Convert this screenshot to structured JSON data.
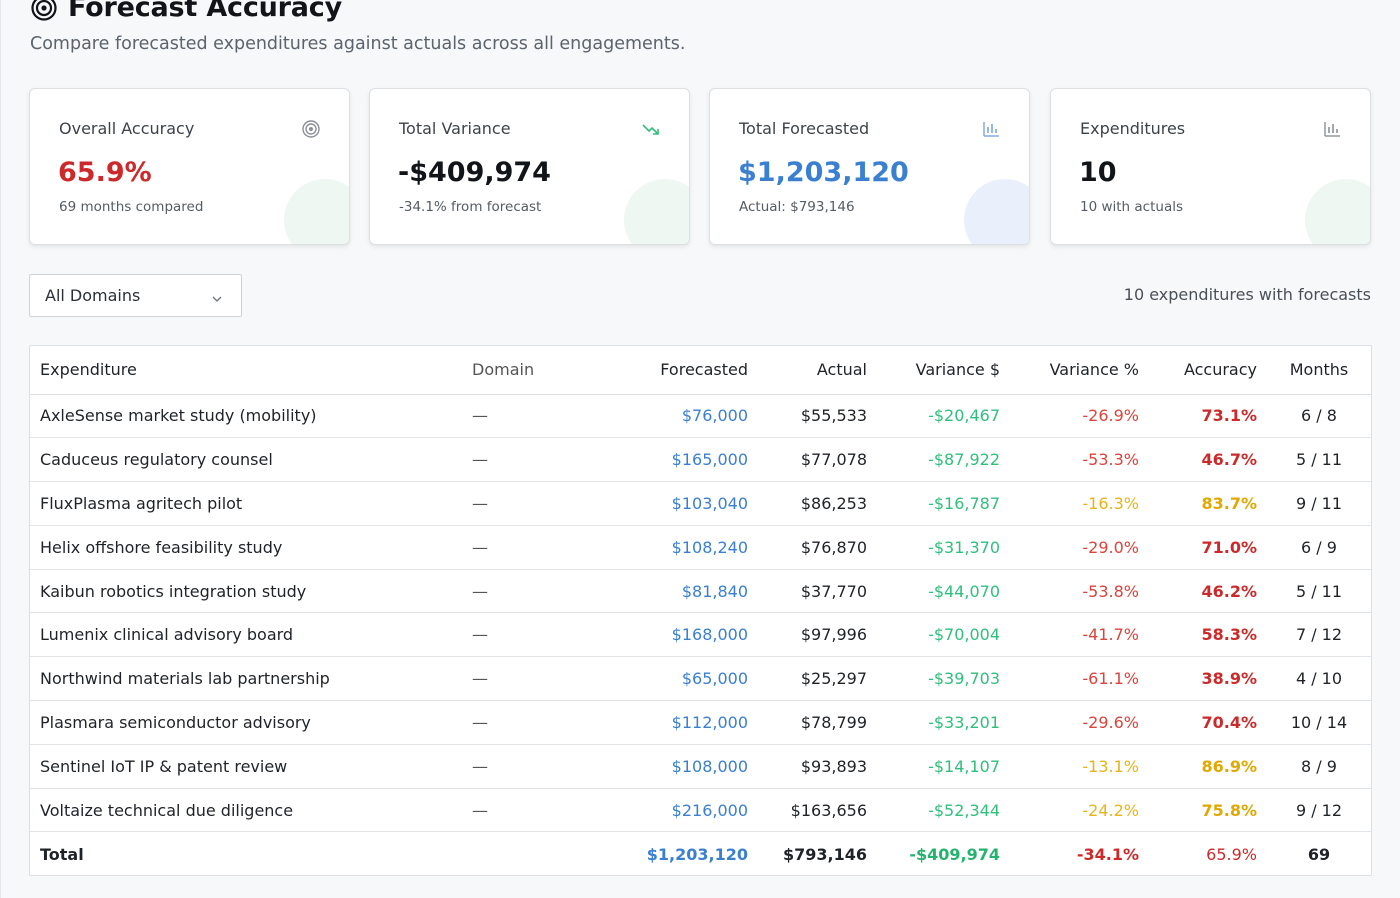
{
  "header": {
    "title": "Forecast Accuracy",
    "icon": "target-icon",
    "subtitle": "Compare forecasted expenditures against actuals across all engagements."
  },
  "cards": [
    {
      "label": "Overall Accuracy",
      "value": "65.9%",
      "sub": "69 months compared",
      "icon": "target-icon",
      "value_color": "#cc2a2a",
      "icon_color": "#8a9099"
    },
    {
      "label": "Total Variance",
      "value": "-$409,974",
      "sub": "-34.1% from forecast",
      "icon": "trending-down-icon",
      "value_color": "#111418",
      "icon_color": "#2fbf7c"
    },
    {
      "label": "Total Forecasted",
      "value": "$1,203,120",
      "sub": "Actual: $793,146",
      "icon": "bar-chart-icon",
      "value_color": "#3a7fd0",
      "icon_color": "#7aa6e6"
    },
    {
      "label": "Expenditures",
      "value": "10",
      "sub": "10 with actuals",
      "icon": "bar-chart-icon",
      "value_color": "#111418",
      "icon_color": "#8a9099"
    }
  ],
  "filter": {
    "selected": "All Domains"
  },
  "count_text": "10 expenditures with forecasts",
  "table": {
    "headers": {
      "expenditure": "Expenditure",
      "domain": "Domain",
      "forecasted": "Forecasted",
      "actual": "Actual",
      "variance": "Variance $",
      "variance_pct": "Variance %",
      "accuracy": "Accuracy",
      "months": "Months"
    },
    "rows": [
      {
        "expenditure": "AxleSense market study (mobility)",
        "domain": "—",
        "forecasted": "$76,000",
        "actual": "$55,533",
        "variance": "-$20,467",
        "variance_pct": "-26.9%",
        "accuracy": "73.1%",
        "months": "6 / 8",
        "level": "red"
      },
      {
        "expenditure": "Caduceus regulatory counsel",
        "domain": "—",
        "forecasted": "$165,000",
        "actual": "$77,078",
        "variance": "-$87,922",
        "variance_pct": "-53.3%",
        "accuracy": "46.7%",
        "months": "5 / 11",
        "level": "red"
      },
      {
        "expenditure": "FluxPlasma agritech pilot",
        "domain": "—",
        "forecasted": "$103,040",
        "actual": "$86,253",
        "variance": "-$16,787",
        "variance_pct": "-16.3%",
        "accuracy": "83.7%",
        "months": "9 / 11",
        "level": "amber"
      },
      {
        "expenditure": "Helix offshore feasibility study",
        "domain": "—",
        "forecasted": "$108,240",
        "actual": "$76,870",
        "variance": "-$31,370",
        "variance_pct": "-29.0%",
        "accuracy": "71.0%",
        "months": "6 / 9",
        "level": "red"
      },
      {
        "expenditure": "Kaibun robotics integration study",
        "domain": "—",
        "forecasted": "$81,840",
        "actual": "$37,770",
        "variance": "-$44,070",
        "variance_pct": "-53.8%",
        "accuracy": "46.2%",
        "months": "5 / 11",
        "level": "red"
      },
      {
        "expenditure": "Lumenix clinical advisory board",
        "domain": "—",
        "forecasted": "$168,000",
        "actual": "$97,996",
        "variance": "-$70,004",
        "variance_pct": "-41.7%",
        "accuracy": "58.3%",
        "months": "7 / 12",
        "level": "red"
      },
      {
        "expenditure": "Northwind materials lab partnership",
        "domain": "—",
        "forecasted": "$65,000",
        "actual": "$25,297",
        "variance": "-$39,703",
        "variance_pct": "-61.1%",
        "accuracy": "38.9%",
        "months": "4 / 10",
        "level": "red"
      },
      {
        "expenditure": "Plasmara semiconductor advisory",
        "domain": "—",
        "forecasted": "$112,000",
        "actual": "$78,799",
        "variance": "-$33,201",
        "variance_pct": "-29.6%",
        "accuracy": "70.4%",
        "months": "10 / 14",
        "level": "red"
      },
      {
        "expenditure": "Sentinel IoT IP & patent review",
        "domain": "—",
        "forecasted": "$108,000",
        "actual": "$93,893",
        "variance": "-$14,107",
        "variance_pct": "-13.1%",
        "accuracy": "86.9%",
        "months": "8 / 9",
        "level": "amber"
      },
      {
        "expenditure": "Voltaize technical due diligence",
        "domain": "—",
        "forecasted": "$216,000",
        "actual": "$163,656",
        "variance": "-$52,344",
        "variance_pct": "-24.2%",
        "accuracy": "75.8%",
        "months": "9 / 12",
        "level": "amber"
      }
    ],
    "total": {
      "label": "Total",
      "forecasted": "$1,203,120",
      "actual": "$793,146",
      "variance": "-$409,974",
      "variance_pct": "-34.1%",
      "accuracy": "65.9%",
      "months": "69"
    }
  }
}
